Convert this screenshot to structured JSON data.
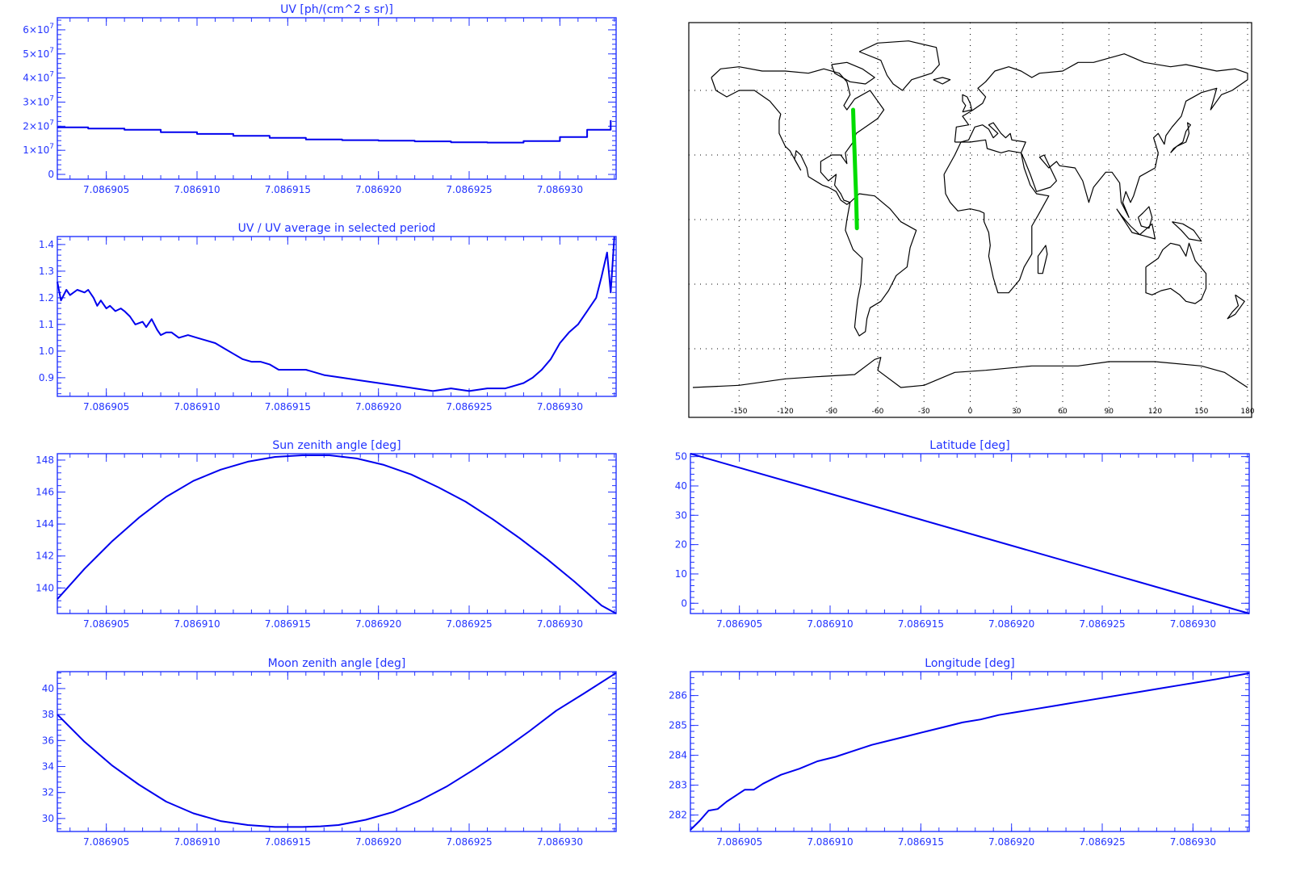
{
  "colors": {
    "axis": "#2233ff",
    "series": "#0000ee",
    "track": "#00dd00",
    "map_lines": "#000000",
    "grid": "#000000",
    "background": "#ffffff"
  },
  "map": {
    "lon_ticks": [
      "-150",
      "-120",
      "-90",
      "-60",
      "-30",
      "0",
      "30",
      "60",
      "90",
      "120",
      "150",
      "180"
    ],
    "track": {
      "lon": [
        -76,
        -75.5,
        -75,
        -74.5,
        -74,
        -73.5
      ],
      "lat": [
        51,
        40,
        30,
        20,
        10,
        -4
      ]
    }
  },
  "chart_data": [
    {
      "type": "line",
      "title": "UV [ph/(cm^2 s sr)]",
      "x": [
        7.0869023,
        7.086904,
        7.086906,
        7.086908,
        7.08691,
        7.086912,
        7.086914,
        7.086916,
        7.086918,
        7.08692,
        7.086922,
        7.086924,
        7.086926,
        7.086928,
        7.08693,
        7.0869315,
        7.0869328
      ],
      "series": [
        {
          "values": [
            19500000.0,
            19000000.0,
            18500000.0,
            17500000.0,
            16800000.0,
            16000000.0,
            15200000.0,
            14500000.0,
            14200000.0,
            14000000.0,
            13700000.0,
            13300000.0,
            13200000.0,
            13800000.0,
            15500000.0,
            18500000.0,
            22500000.0
          ]
        }
      ],
      "xlim": [
        7.0869023,
        7.0869331
      ],
      "ylim": [
        -2000000,
        65000000
      ],
      "x_tick_values": [
        7.086905,
        7.08691,
        7.086915,
        7.08692,
        7.086925,
        7.08693
      ],
      "x_tick_labels": [
        "7.086905",
        "7.086910",
        "7.086915",
        "7.086920",
        "7.086925",
        "7.086930"
      ],
      "y_tick_values": [
        0,
        10000000,
        20000000,
        30000000,
        40000000,
        50000000,
        60000000
      ],
      "y_tick_labels": [
        {
          "base": "0",
          "exp": ""
        },
        {
          "base": "1×10",
          "exp": "7"
        },
        {
          "base": "2×10",
          "exp": "7"
        },
        {
          "base": "3×10",
          "exp": "7"
        },
        {
          "base": "4×10",
          "exp": "7"
        },
        {
          "base": "5×10",
          "exp": "7"
        },
        {
          "base": "6×10",
          "exp": "7"
        }
      ]
    },
    {
      "type": "line",
      "title": "UV / UV average in selected period",
      "x": [
        7.0869023,
        7.0869025,
        7.0869028,
        7.086903,
        7.0869034,
        7.0869038,
        7.086904,
        7.0869043,
        7.0869045,
        7.0869047,
        7.086905,
        7.0869052,
        7.0869055,
        7.0869058,
        7.086906,
        7.0869063,
        7.0869066,
        7.086907,
        7.0869072,
        7.0869075,
        7.0869078,
        7.086908,
        7.0869083,
        7.0869086,
        7.086909,
        7.0869095,
        7.08691,
        7.0869105,
        7.086911,
        7.0869115,
        7.086912,
        7.0869125,
        7.086913,
        7.0869135,
        7.086914,
        7.0869145,
        7.086915,
        7.086916,
        7.086917,
        7.086918,
        7.086919,
        7.08692,
        7.086921,
        7.086922,
        7.086923,
        7.086924,
        7.086925,
        7.086926,
        7.086927,
        7.0869275,
        7.086928,
        7.0869285,
        7.086929,
        7.0869295,
        7.08693,
        7.0869305,
        7.086931,
        7.0869315,
        7.086932,
        7.0869323,
        7.0869326,
        7.0869328,
        7.086933
      ],
      "series": [
        {
          "values": [
            1.26,
            1.19,
            1.23,
            1.21,
            1.23,
            1.22,
            1.23,
            1.2,
            1.17,
            1.19,
            1.16,
            1.17,
            1.15,
            1.16,
            1.15,
            1.13,
            1.1,
            1.11,
            1.09,
            1.12,
            1.08,
            1.06,
            1.07,
            1.07,
            1.05,
            1.06,
            1.05,
            1.04,
            1.03,
            1.01,
            0.99,
            0.97,
            0.96,
            0.96,
            0.95,
            0.93,
            0.93,
            0.93,
            0.91,
            0.9,
            0.89,
            0.88,
            0.87,
            0.86,
            0.85,
            0.86,
            0.85,
            0.86,
            0.86,
            0.87,
            0.88,
            0.9,
            0.93,
            0.97,
            1.03,
            1.07,
            1.1,
            1.15,
            1.2,
            1.28,
            1.37,
            1.22,
            1.43
          ]
        }
      ],
      "xlim": [
        7.0869023,
        7.0869331
      ],
      "ylim": [
        0.83,
        1.43
      ],
      "x_tick_values": [
        7.086905,
        7.08691,
        7.086915,
        7.08692,
        7.086925,
        7.08693
      ],
      "x_tick_labels": [
        "7.086905",
        "7.086910",
        "7.086915",
        "7.086920",
        "7.086925",
        "7.086930"
      ],
      "y_tick_values": [
        0.9,
        1.0,
        1.1,
        1.2,
        1.3,
        1.4
      ],
      "y_tick_labels": [
        "0.9",
        "1.0",
        "1.1",
        "1.2",
        "1.3",
        "1.4"
      ]
    },
    {
      "type": "line",
      "title": "Sun zenith angle [deg]",
      "x": [
        7.0869023,
        7.0869038,
        7.0869053,
        7.0869068,
        7.0869083,
        7.0869098,
        7.0869113,
        7.0869128,
        7.0869143,
        7.0869158,
        7.0869173,
        7.0869188,
        7.0869203,
        7.0869218,
        7.0869233,
        7.0869248,
        7.0869263,
        7.0869278,
        7.0869293,
        7.0869308,
        7.0869323,
        7.0869331
      ],
      "series": [
        {
          "values": [
            139.3,
            141.2,
            142.9,
            144.4,
            145.7,
            146.7,
            147.4,
            147.9,
            148.2,
            148.3,
            148.3,
            148.1,
            147.7,
            147.1,
            146.3,
            145.4,
            144.3,
            143.1,
            141.8,
            140.4,
            138.9,
            138.4
          ]
        }
      ],
      "xlim": [
        7.0869023,
        7.0869331
      ],
      "ylim": [
        138.4,
        148.4
      ],
      "x_tick_values": [
        7.086905,
        7.08691,
        7.086915,
        7.08692,
        7.086925,
        7.08693
      ],
      "x_tick_labels": [
        "7.086905",
        "7.086910",
        "7.086915",
        "7.086920",
        "7.086925",
        "7.086930"
      ],
      "y_tick_values": [
        140,
        142,
        144,
        146,
        148
      ],
      "y_tick_labels": [
        "140",
        "142",
        "144",
        "146",
        "148"
      ]
    },
    {
      "type": "line",
      "title": "Latitude [deg]",
      "x": [
        7.0869023,
        7.0869331
      ],
      "series": [
        {
          "values": [
            51,
            -3.5
          ]
        }
      ],
      "xlim": [
        7.0869023,
        7.0869331
      ],
      "ylim": [
        -3.5,
        51
      ],
      "x_tick_values": [
        7.086905,
        7.08691,
        7.086915,
        7.08692,
        7.086925,
        7.08693
      ],
      "x_tick_labels": [
        "7.086905",
        "7.086910",
        "7.086915",
        "7.086920",
        "7.086925",
        "7.086930"
      ],
      "y_tick_values": [
        0,
        10,
        20,
        30,
        40,
        50
      ],
      "y_tick_labels": [
        "0",
        "10",
        "20",
        "30",
        "40",
        "50"
      ]
    },
    {
      "type": "line",
      "title": "Moon zenith angle [deg]",
      "x": [
        7.0869023,
        7.0869038,
        7.0869053,
        7.0869068,
        7.0869083,
        7.0869098,
        7.0869113,
        7.0869128,
        7.0869143,
        7.0869158,
        7.0869168,
        7.0869178,
        7.0869193,
        7.0869208,
        7.0869223,
        7.0869238,
        7.0869253,
        7.0869268,
        7.0869283,
        7.0869298,
        7.0869313,
        7.0869331
      ],
      "series": [
        {
          "values": [
            38.0,
            35.9,
            34.1,
            32.6,
            31.3,
            30.4,
            29.8,
            29.5,
            29.35,
            29.35,
            29.4,
            29.5,
            29.9,
            30.5,
            31.4,
            32.5,
            33.8,
            35.2,
            36.7,
            38.3,
            39.6,
            41.2
          ]
        }
      ],
      "xlim": [
        7.0869023,
        7.0869331
      ],
      "ylim": [
        29.0,
        41.3
      ],
      "x_tick_values": [
        7.086905,
        7.08691,
        7.086915,
        7.08692,
        7.086925,
        7.08693
      ],
      "x_tick_labels": [
        "7.086905",
        "7.086910",
        "7.086915",
        "7.086920",
        "7.086925",
        "7.086930"
      ],
      "y_tick_values": [
        30,
        32,
        34,
        36,
        38,
        40
      ],
      "y_tick_labels": [
        "30",
        "32",
        "34",
        "36",
        "38",
        "40"
      ]
    },
    {
      "type": "line",
      "title": "Longitude [deg]",
      "x": [
        7.0869023,
        7.0869028,
        7.0869033,
        7.0869038,
        7.0869043,
        7.0869048,
        7.0869053,
        7.0869058,
        7.0869063,
        7.0869068,
        7.0869073,
        7.0869083,
        7.0869093,
        7.0869103,
        7.0869113,
        7.0869123,
        7.0869133,
        7.0869143,
        7.0869153,
        7.0869163,
        7.0869173,
        7.0869183,
        7.0869193,
        7.0869203,
        7.0869213,
        7.0869223,
        7.0869233,
        7.0869243,
        7.0869253,
        7.0869263,
        7.0869273,
        7.0869283,
        7.0869293,
        7.0869303,
        7.0869313,
        7.0869331
      ],
      "series": [
        {
          "values": [
            281.5,
            281.8,
            282.15,
            282.2,
            282.45,
            282.65,
            282.85,
            282.85,
            283.05,
            283.2,
            283.35,
            283.55,
            283.8,
            283.95,
            284.15,
            284.35,
            284.5,
            284.65,
            284.8,
            284.95,
            285.1,
            285.2,
            285.35,
            285.45,
            285.55,
            285.65,
            285.75,
            285.85,
            285.95,
            286.05,
            286.15,
            286.25,
            286.35,
            286.45,
            286.55,
            286.75
          ]
        }
      ],
      "xlim": [
        7.0869023,
        7.0869331
      ],
      "ylim": [
        281.45,
        286.8
      ],
      "x_tick_values": [
        7.086905,
        7.08691,
        7.086915,
        7.08692,
        7.086925,
        7.08693
      ],
      "x_tick_labels": [
        "7.086905",
        "7.086910",
        "7.086915",
        "7.086920",
        "7.086925",
        "7.086930"
      ],
      "y_tick_values": [
        282,
        283,
        284,
        285,
        286
      ],
      "y_tick_labels": [
        "282",
        "283",
        "284",
        "285",
        "286"
      ]
    }
  ]
}
